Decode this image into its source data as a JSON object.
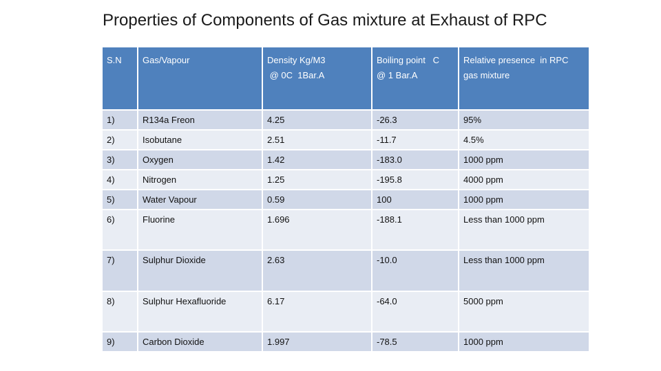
{
  "title": "Properties of Components of Gas mixture at Exhaust of RPC",
  "table": {
    "headers": [
      {
        "line1": "S.N",
        "line2": ""
      },
      {
        "line1": "Gas/Vapour",
        "line2": ""
      },
      {
        "line1": "Density Kg/M3",
        "line2": " @ 0C  1Bar.A"
      },
      {
        "line1": "Boiling point   C",
        "line2": "@ 1 Bar.A"
      },
      {
        "line1": "Relative presence  in RPC",
        "line2": "gas mixture"
      }
    ],
    "rows": [
      {
        "sn": "1)",
        "gas": "R134a Freon",
        "density": "4.25",
        "boiling": "-26.3",
        "presence": "95%"
      },
      {
        "sn": "2)",
        "gas": "Isobutane",
        "density": "2.51",
        "boiling": "-11.7",
        "presence": "4.5%"
      },
      {
        "sn": "3)",
        "gas": "Oxygen",
        "density": "1.42",
        "boiling": "-183.0",
        "presence": "1000 ppm"
      },
      {
        "sn": "4)",
        "gas": "Nitrogen",
        "density": "1.25",
        "boiling": "-195.8",
        "presence": "4000 ppm"
      },
      {
        "sn": "5)",
        "gas": "Water Vapour",
        "density": "0.59",
        "boiling": "100",
        "presence": "1000 ppm"
      },
      {
        "sn": "6)",
        "gas": "Fluorine",
        "density": "1.696",
        "boiling": "-188.1",
        "presence": "Less than 1000 ppm"
      },
      {
        "sn": "7)",
        "gas": "Sulphur Dioxide",
        "density": "2.63",
        "boiling": "-10.0",
        "presence": "Less than 1000 ppm"
      },
      {
        "sn": "8)",
        "gas": "Sulphur Hexafluoride",
        "density": "6.17",
        "boiling": "-64.0",
        "presence": "5000 ppm"
      },
      {
        "sn": "9)",
        "gas": "Carbon Dioxide",
        "density": "1.997",
        "boiling": "-78.5",
        "presence": "1000 ppm"
      }
    ]
  },
  "colors": {
    "header_bg": "#4f81bd",
    "header_text": "#ffffff",
    "row_band_dark": "#d0d8e8",
    "row_band_light": "#e9edf4"
  }
}
